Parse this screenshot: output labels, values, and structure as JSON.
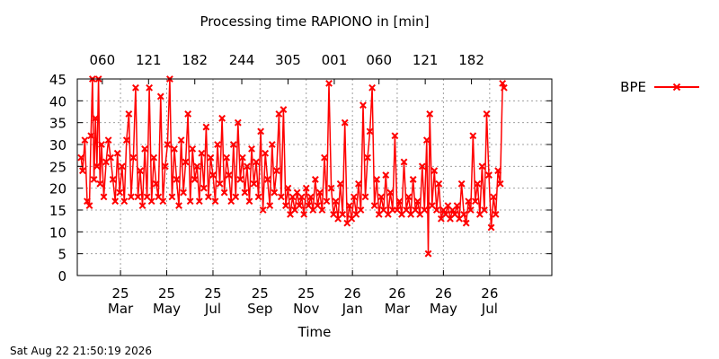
{
  "chart_data": {
    "type": "line",
    "title": "Processing time RAPIONO in [min]",
    "xlabel": "Time",
    "ylabel": "",
    "ylim": [
      0,
      45
    ],
    "yticks": [
      0,
      5,
      10,
      15,
      20,
      25,
      30,
      35,
      40,
      45
    ],
    "xlim": [
      "2025-01-27",
      "2026-10-15"
    ],
    "x_ticks_bottom": [
      {
        "date": "2025-03-25",
        "line1": "25",
        "line2": "Mar"
      },
      {
        "date": "2025-05-25",
        "line1": "25",
        "line2": "May"
      },
      {
        "date": "2025-07-25",
        "line1": "25",
        "line2": "Jul"
      },
      {
        "date": "2025-09-25",
        "line1": "25",
        "line2": "Sep"
      },
      {
        "date": "2025-11-25",
        "line1": "25",
        "line2": "Nov"
      },
      {
        "date": "2026-01-25",
        "line1": "26",
        "line2": "Jan"
      },
      {
        "date": "2026-03-25",
        "line1": "26",
        "line2": "Mar"
      },
      {
        "date": "2026-05-25",
        "line1": "26",
        "line2": "May"
      },
      {
        "date": "2026-07-25",
        "line1": "26",
        "line2": "Jul"
      }
    ],
    "x_ticks_top": [
      {
        "date": "2025-03-01",
        "label": "060"
      },
      {
        "date": "2025-05-01",
        "label": "121"
      },
      {
        "date": "2025-07-01",
        "label": "182"
      },
      {
        "date": "2025-09-01",
        "label": "244"
      },
      {
        "date": "2025-11-01",
        "label": "305"
      },
      {
        "date": "2026-01-01",
        "label": "001"
      },
      {
        "date": "2026-03-01",
        "label": "060"
      },
      {
        "date": "2026-05-01",
        "label": "121"
      },
      {
        "date": "2026-07-01",
        "label": "182"
      }
    ],
    "grid": true,
    "legend_position": "top-right",
    "series": [
      {
        "name": "BPE",
        "color": "#ff0000",
        "marker": "x",
        "points": [
          [
            "2025-02-01",
            27
          ],
          [
            "2025-02-03",
            24
          ],
          [
            "2025-02-06",
            31
          ],
          [
            "2025-02-09",
            17
          ],
          [
            "2025-02-12",
            16
          ],
          [
            "2025-02-14",
            32
          ],
          [
            "2025-02-16",
            45
          ],
          [
            "2025-02-18",
            22
          ],
          [
            "2025-02-20",
            36
          ],
          [
            "2025-02-22",
            25
          ],
          [
            "2025-02-24",
            45
          ],
          [
            "2025-02-26",
            21
          ],
          [
            "2025-02-28",
            30
          ],
          [
            "2025-03-03",
            18
          ],
          [
            "2025-03-06",
            26
          ],
          [
            "2025-03-09",
            31
          ],
          [
            "2025-03-12",
            27
          ],
          [
            "2025-03-15",
            22
          ],
          [
            "2025-03-18",
            17
          ],
          [
            "2025-03-21",
            28
          ],
          [
            "2025-03-24",
            19
          ],
          [
            "2025-03-27",
            25
          ],
          [
            "2025-03-30",
            17
          ],
          [
            "2025-04-02",
            31
          ],
          [
            "2025-04-05",
            37
          ],
          [
            "2025-04-08",
            18
          ],
          [
            "2025-04-11",
            27
          ],
          [
            "2025-04-14",
            43
          ],
          [
            "2025-04-17",
            18
          ],
          [
            "2025-04-20",
            24
          ],
          [
            "2025-04-23",
            16
          ],
          [
            "2025-04-26",
            29
          ],
          [
            "2025-04-29",
            18
          ],
          [
            "2025-05-02",
            43
          ],
          [
            "2025-05-05",
            17
          ],
          [
            "2025-05-08",
            27
          ],
          [
            "2025-05-11",
            21
          ],
          [
            "2025-05-14",
            18
          ],
          [
            "2025-05-17",
            41
          ],
          [
            "2025-05-20",
            17
          ],
          [
            "2025-05-23",
            25
          ],
          [
            "2025-05-26",
            30
          ],
          [
            "2025-05-29",
            45
          ],
          [
            "2025-06-01",
            18
          ],
          [
            "2025-06-04",
            29
          ],
          [
            "2025-06-07",
            22
          ],
          [
            "2025-06-10",
            16
          ],
          [
            "2025-06-13",
            31
          ],
          [
            "2025-06-16",
            19
          ],
          [
            "2025-06-19",
            26
          ],
          [
            "2025-06-22",
            37
          ],
          [
            "2025-06-25",
            17
          ],
          [
            "2025-06-28",
            29
          ],
          [
            "2025-07-01",
            22
          ],
          [
            "2025-07-04",
            25
          ],
          [
            "2025-07-07",
            17
          ],
          [
            "2025-07-10",
            28
          ],
          [
            "2025-07-13",
            20
          ],
          [
            "2025-07-16",
            34
          ],
          [
            "2025-07-19",
            18
          ],
          [
            "2025-07-22",
            27
          ],
          [
            "2025-07-25",
            23
          ],
          [
            "2025-07-28",
            17
          ],
          [
            "2025-07-31",
            30
          ],
          [
            "2025-08-03",
            21
          ],
          [
            "2025-08-06",
            36
          ],
          [
            "2025-08-09",
            19
          ],
          [
            "2025-08-12",
            27
          ],
          [
            "2025-08-15",
            23
          ],
          [
            "2025-08-18",
            17
          ],
          [
            "2025-08-21",
            30
          ],
          [
            "2025-08-24",
            18
          ],
          [
            "2025-08-27",
            35
          ],
          [
            "2025-08-30",
            22
          ],
          [
            "2025-09-02",
            27
          ],
          [
            "2025-09-05",
            19
          ],
          [
            "2025-09-08",
            25
          ],
          [
            "2025-09-11",
            17
          ],
          [
            "2025-09-14",
            29
          ],
          [
            "2025-09-17",
            21
          ],
          [
            "2025-09-20",
            26
          ],
          [
            "2025-09-23",
            18
          ],
          [
            "2025-09-26",
            33
          ],
          [
            "2025-09-29",
            15
          ],
          [
            "2025-10-02",
            28
          ],
          [
            "2025-10-05",
            22
          ],
          [
            "2025-10-08",
            16
          ],
          [
            "2025-10-11",
            30
          ],
          [
            "2025-10-14",
            19
          ],
          [
            "2025-10-17",
            24
          ],
          [
            "2025-10-20",
            37
          ],
          [
            "2025-10-23",
            18
          ],
          [
            "2025-10-26",
            38
          ],
          [
            "2025-10-29",
            16
          ],
          [
            "2025-11-01",
            20
          ],
          [
            "2025-11-04",
            14
          ],
          [
            "2025-11-07",
            18
          ],
          [
            "2025-11-10",
            15
          ],
          [
            "2025-11-13",
            19
          ],
          [
            "2025-11-16",
            16
          ],
          [
            "2025-11-19",
            18
          ],
          [
            "2025-11-22",
            14
          ],
          [
            "2025-11-25",
            20
          ],
          [
            "2025-11-28",
            16
          ],
          [
            "2025-12-01",
            18
          ],
          [
            "2025-12-04",
            15
          ],
          [
            "2025-12-07",
            22
          ],
          [
            "2025-12-10",
            16
          ],
          [
            "2025-12-13",
            19
          ],
          [
            "2025-12-16",
            15
          ],
          [
            "2025-12-19",
            27
          ],
          [
            "2025-12-22",
            17
          ],
          [
            "2025-12-25",
            44
          ],
          [
            "2025-12-28",
            20
          ],
          [
            "2025-12-31",
            14
          ],
          [
            "2026-01-03",
            17
          ],
          [
            "2026-01-06",
            13
          ],
          [
            "2026-01-09",
            21
          ],
          [
            "2026-01-12",
            14
          ],
          [
            "2026-01-15",
            35
          ],
          [
            "2026-01-18",
            12
          ],
          [
            "2026-01-21",
            16
          ],
          [
            "2026-01-24",
            13
          ],
          [
            "2026-01-27",
            18
          ],
          [
            "2026-01-30",
            14
          ],
          [
            "2026-02-02",
            21
          ],
          [
            "2026-02-05",
            15
          ],
          [
            "2026-02-08",
            39
          ],
          [
            "2026-02-11",
            18
          ],
          [
            "2026-02-14",
            27
          ],
          [
            "2026-02-17",
            33
          ],
          [
            "2026-02-20",
            43
          ],
          [
            "2026-02-23",
            16
          ],
          [
            "2026-02-26",
            22
          ],
          [
            "2026-03-01",
            14
          ],
          [
            "2026-03-04",
            18
          ],
          [
            "2026-03-07",
            15
          ],
          [
            "2026-03-10",
            23
          ],
          [
            "2026-03-13",
            14
          ],
          [
            "2026-03-16",
            19
          ],
          [
            "2026-03-19",
            15
          ],
          [
            "2026-03-22",
            32
          ],
          [
            "2026-03-25",
            15
          ],
          [
            "2026-03-28",
            17
          ],
          [
            "2026-03-31",
            14
          ],
          [
            "2026-04-03",
            26
          ],
          [
            "2026-04-06",
            15
          ],
          [
            "2026-04-09",
            18
          ],
          [
            "2026-04-12",
            14
          ],
          [
            "2026-04-15",
            22
          ],
          [
            "2026-04-18",
            15
          ],
          [
            "2026-04-21",
            17
          ],
          [
            "2026-04-24",
            14
          ],
          [
            "2026-04-27",
            25
          ],
          [
            "2026-04-30",
            15
          ],
          [
            "2026-05-03",
            31
          ],
          [
            "2026-05-05",
            5
          ],
          [
            "2026-05-07",
            37
          ],
          [
            "2026-05-10",
            16
          ],
          [
            "2026-05-13",
            24
          ],
          [
            "2026-05-16",
            15
          ],
          [
            "2026-05-19",
            21
          ],
          [
            "2026-05-22",
            13
          ],
          [
            "2026-05-25",
            15
          ],
          [
            "2026-05-28",
            14
          ],
          [
            "2026-05-31",
            16
          ],
          [
            "2026-06-03",
            13
          ],
          [
            "2026-06-06",
            15
          ],
          [
            "2026-06-09",
            14
          ],
          [
            "2026-06-12",
            16
          ],
          [
            "2026-06-15",
            13
          ],
          [
            "2026-06-18",
            21
          ],
          [
            "2026-06-21",
            14
          ],
          [
            "2026-06-24",
            12
          ],
          [
            "2026-06-27",
            17
          ],
          [
            "2026-06-30",
            15
          ],
          [
            "2026-07-03",
            32
          ],
          [
            "2026-07-06",
            17
          ],
          [
            "2026-07-09",
            21
          ],
          [
            "2026-07-12",
            14
          ],
          [
            "2026-07-15",
            25
          ],
          [
            "2026-07-18",
            15
          ],
          [
            "2026-07-21",
            37
          ],
          [
            "2026-07-24",
            23
          ],
          [
            "2026-07-27",
            11
          ],
          [
            "2026-07-30",
            18
          ],
          [
            "2026-08-02",
            14
          ],
          [
            "2026-08-05",
            24
          ],
          [
            "2026-08-08",
            21
          ],
          [
            "2026-08-11",
            44
          ],
          [
            "2026-08-13",
            43
          ]
        ]
      }
    ]
  },
  "timestamp": "Sat Aug 22 21:50:19 2026"
}
